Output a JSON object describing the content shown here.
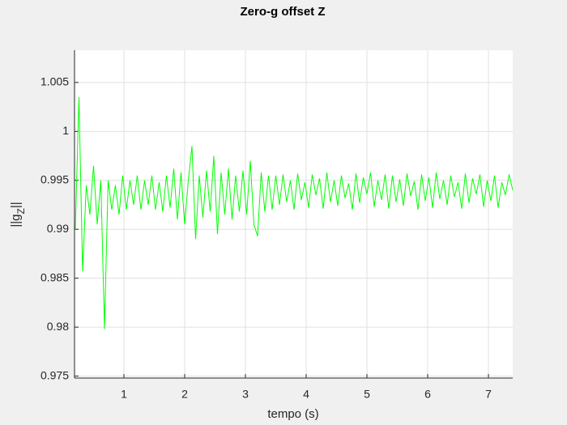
{
  "chart_data": {
    "type": "line",
    "title": "Zero-g offset Z",
    "xlabel": "tempo (s)",
    "ylabel": [
      "||g",
      "Z",
      "||"
    ],
    "xlim": [
      0.187,
      7.4
    ],
    "ylim": [
      0.9748,
      1.0083
    ],
    "xticks": [
      1,
      2,
      3,
      4,
      5,
      6,
      7
    ],
    "yticks": [
      0.975,
      0.98,
      0.985,
      0.99,
      0.995,
      1,
      1.005
    ],
    "grid": true,
    "x": [
      0.2,
      0.26,
      0.32,
      0.38,
      0.44,
      0.5,
      0.56,
      0.62,
      0.68,
      0.74,
      0.8,
      0.86,
      0.92,
      0.98,
      1.04,
      1.1,
      1.16,
      1.22,
      1.28,
      1.34,
      1.4,
      1.46,
      1.52,
      1.58,
      1.64,
      1.7,
      1.76,
      1.82,
      1.88,
      1.94,
      2,
      2.06,
      2.12,
      2.18,
      2.24,
      2.3,
      2.36,
      2.42,
      2.48,
      2.54,
      2.6,
      2.66,
      2.72,
      2.78,
      2.84,
      2.9,
      2.96,
      3.02,
      3.08,
      3.14,
      3.2,
      3.26,
      3.32,
      3.38,
      3.44,
      3.5,
      3.56,
      3.62,
      3.68,
      3.74,
      3.8,
      3.86,
      3.92,
      3.98,
      4.04,
      4.1,
      4.16,
      4.22,
      4.28,
      4.34,
      4.4,
      4.46,
      4.52,
      4.58,
      4.64,
      4.7,
      4.76,
      4.82,
      4.88,
      4.94,
      5,
      5.06,
      5.12,
      5.18,
      5.24,
      5.3,
      5.36,
      5.42,
      5.48,
      5.54,
      5.6,
      5.66,
      5.72,
      5.78,
      5.84,
      5.9,
      5.96,
      6.02,
      6.08,
      6.14,
      6.2,
      6.26,
      6.32,
      6.38,
      6.44,
      6.5,
      6.56,
      6.62,
      6.68,
      6.74,
      6.8,
      6.86,
      6.92,
      6.98,
      7.04,
      7.1,
      7.16,
      7.22,
      7.28,
      7.34,
      7.4
    ],
    "series": [
      {
        "color": "#00ff00",
        "values": [
          0.99,
          1.0035,
          0.9857,
          0.9945,
          0.9915,
          0.9965,
          0.9905,
          0.995,
          0.9798,
          0.995,
          0.992,
          0.9945,
          0.9915,
          0.9955,
          0.992,
          0.995,
          0.9925,
          0.9955,
          0.992,
          0.995,
          0.9925,
          0.9955,
          0.992,
          0.9948,
          0.9918,
          0.9955,
          0.9922,
          0.9962,
          0.991,
          0.9958,
          0.9905,
          0.995,
          0.9985,
          0.989,
          0.9955,
          0.9912,
          0.996,
          0.9918,
          0.9975,
          0.9895,
          0.9958,
          0.9915,
          0.9962,
          0.991,
          0.9955,
          0.9918,
          0.996,
          0.9915,
          0.997,
          0.9905,
          0.9893,
          0.9958,
          0.9918,
          0.9955,
          0.992,
          0.9955,
          0.9925,
          0.9956,
          0.9928,
          0.995,
          0.992,
          0.9957,
          0.993,
          0.9948,
          0.9922,
          0.9956,
          0.9935,
          0.9952,
          0.9921,
          0.9958,
          0.9928,
          0.995,
          0.9924,
          0.9955,
          0.9932,
          0.9947,
          0.992,
          0.9957,
          0.9927,
          0.9953,
          0.9936,
          0.9958,
          0.9923,
          0.995,
          0.993,
          0.9956,
          0.9921,
          0.9955,
          0.9928,
          0.9951,
          0.9924,
          0.9957,
          0.9934,
          0.9949,
          0.992,
          0.9956,
          0.9929,
          0.9953,
          0.9922,
          0.9958,
          0.9931,
          0.995,
          0.9925,
          0.9955,
          0.9933,
          0.9948,
          0.9921,
          0.9957,
          0.9927,
          0.9952,
          0.9936,
          0.9956,
          0.9923,
          0.995,
          0.9929,
          0.9955,
          0.9922,
          0.9948,
          0.9935,
          0.9956,
          0.994
        ]
      }
    ]
  }
}
